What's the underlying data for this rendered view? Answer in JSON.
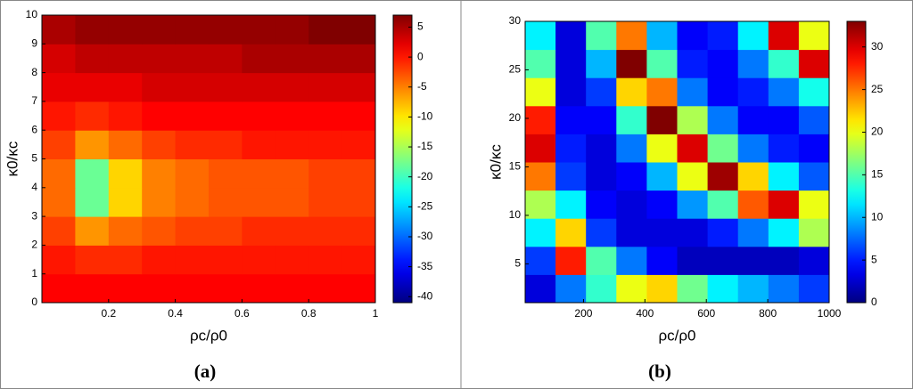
{
  "chart_data": [
    {
      "type": "heatmap",
      "panel_label": "(a)",
      "xlabel": "ρc/ρ0",
      "ylabel": "κ0/κc",
      "xlim": [
        0,
        1
      ],
      "ylim": [
        0,
        10
      ],
      "xticks": [
        0.2,
        0.4,
        0.6,
        0.8,
        1
      ],
      "yticks": [
        0,
        1,
        2,
        3,
        4,
        5,
        6,
        7,
        8,
        9,
        10
      ],
      "xbins": [
        0,
        0.1,
        0.2,
        0.3,
        0.4,
        0.5,
        0.6,
        0.7,
        0.8,
        0.9,
        1
      ],
      "ybins": [
        0,
        1,
        2,
        3,
        4,
        5,
        6,
        7,
        8,
        9,
        10
      ],
      "z": [
        [
          1,
          1,
          1,
          1,
          1,
          1,
          1,
          1,
          1,
          1
        ],
        [
          0,
          -1,
          -1,
          0,
          0,
          0,
          0,
          0,
          0,
          0
        ],
        [
          -2,
          -6,
          -4,
          -3,
          -2,
          -2,
          -1,
          -1,
          -1,
          -1
        ],
        [
          -4,
          -18,
          -9,
          -5,
          -4,
          -3,
          -3,
          -3,
          -2,
          -2
        ],
        [
          -4,
          -18,
          -9,
          -5,
          -4,
          -3,
          -3,
          -3,
          -2,
          -2
        ],
        [
          -2,
          -6,
          -4,
          -2,
          -1,
          -1,
          0,
          0,
          0,
          0
        ],
        [
          0,
          -1,
          0,
          1,
          1,
          1,
          1,
          1,
          1,
          1
        ],
        [
          2,
          2,
          2,
          3,
          3,
          3,
          3,
          3,
          3,
          3
        ],
        [
          3,
          4,
          4,
          4,
          4,
          4,
          5,
          5,
          5,
          5
        ],
        [
          5,
          6,
          6,
          6,
          6,
          6,
          6,
          6,
          7,
          7
        ]
      ],
      "colormap": "jet",
      "clim": [
        -41,
        7
      ],
      "cticks": [
        -40,
        -35,
        -30,
        -25,
        -20,
        -15,
        -10,
        -5,
        0,
        5
      ]
    },
    {
      "type": "heatmap",
      "panel_label": "(b)",
      "xlabel": "ρc/ρ0",
      "ylabel": "κ0/κc",
      "xlim": [
        10,
        1000
      ],
      "ylim": [
        1,
        30
      ],
      "xticks": [
        200,
        400,
        600,
        800,
        1000
      ],
      "yticks": [
        5,
        10,
        15,
        20,
        25,
        30
      ],
      "xbins": [
        10,
        109,
        208,
        307,
        406,
        505,
        604,
        703,
        802,
        901,
        1000
      ],
      "ybins": [
        1,
        3.9,
        6.8,
        9.7,
        12.6,
        15.5,
        18.4,
        21.3,
        24.2,
        27.1,
        30
      ],
      "z": [
        [
          3,
          8,
          14,
          20,
          22,
          16,
          12,
          10,
          8,
          6
        ],
        [
          6,
          28,
          15,
          8,
          4,
          2,
          2,
          2,
          2,
          3
        ],
        [
          12,
          22,
          6,
          3,
          3,
          3,
          5,
          8,
          12,
          18
        ],
        [
          18,
          12,
          4,
          3,
          4,
          9,
          15,
          26,
          30,
          20
        ],
        [
          25,
          6,
          3,
          4,
          10,
          20,
          32,
          22,
          12,
          7
        ],
        [
          30,
          5,
          3,
          8,
          20,
          30,
          16,
          8,
          5,
          4
        ],
        [
          28,
          4,
          4,
          14,
          33,
          18,
          8,
          4,
          4,
          7
        ],
        [
          20,
          3,
          6,
          22,
          25,
          8,
          4,
          5,
          8,
          13
        ],
        [
          15,
          3,
          10,
          33,
          15,
          5,
          4,
          8,
          14,
          30
        ],
        [
          12,
          3,
          15,
          25,
          10,
          4,
          5,
          12,
          30,
          20
        ]
      ],
      "colormap": "jet",
      "clim": [
        0,
        33
      ],
      "cticks": [
        0,
        5,
        10,
        15,
        20,
        25,
        30
      ]
    }
  ]
}
